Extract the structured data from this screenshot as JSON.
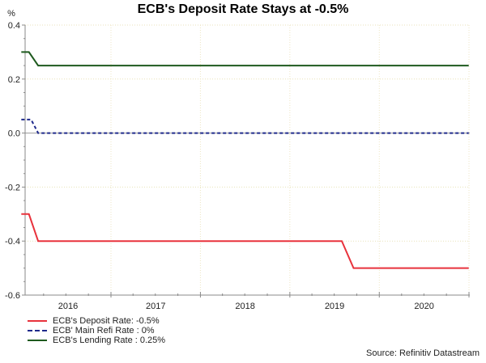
{
  "chart_data": {
    "type": "line",
    "title": "ECB's Deposit Rate Stays at -0.5%",
    "ylabel": "%",
    "xlabel": "",
    "ylim": [
      -0.6,
      0.4
    ],
    "yticks": [
      0.4,
      0.2,
      0.0,
      -0.2,
      -0.4,
      -0.6
    ],
    "ytick_labels": [
      "0.4",
      "0.2",
      "0.0",
      "-0.2",
      "-0.4",
      "-0.6"
    ],
    "xlim": [
      "2015-12-15",
      "2021-01-01"
    ],
    "x_tick_labels": [
      "2016",
      "2017",
      "2018",
      "2019",
      "2020"
    ],
    "grid": true,
    "legend_position": "bottom-left",
    "series": [
      {
        "name": "ECB's Deposit Rate: -0.5%",
        "color": "#e8323c",
        "style": "solid",
        "points": [
          [
            "2016-01-01",
            -0.3
          ],
          [
            "2016-02-01",
            -0.3
          ],
          [
            "2016-03-10",
            -0.4
          ],
          [
            "2019-08-01",
            -0.4
          ],
          [
            "2019-09-18",
            -0.5
          ],
          [
            "2020-12-31",
            -0.5
          ]
        ]
      },
      {
        "name": "ECB' Main Refi Rate : 0%",
        "color": "#1f2a8c",
        "style": "dashed",
        "points": [
          [
            "2016-01-01",
            0.05
          ],
          [
            "2016-02-10",
            0.05
          ],
          [
            "2016-03-10",
            0.0
          ],
          [
            "2020-12-31",
            0.0
          ]
        ]
      },
      {
        "name": "ECB's Lending Rate : 0.25%",
        "color": "#1e5a1e",
        "style": "solid",
        "points": [
          [
            "2016-01-01",
            0.3
          ],
          [
            "2016-02-01",
            0.3
          ],
          [
            "2016-03-10",
            0.25
          ],
          [
            "2020-12-31",
            0.25
          ]
        ]
      }
    ],
    "source": "Source: Refinitiv Datastream"
  },
  "legend": {
    "items": [
      {
        "label": "ECB's Deposit Rate: -0.5%",
        "color": "#e8323c",
        "style": "solid"
      },
      {
        "label": "ECB' Main Refi Rate : 0%",
        "color": "#1f2a8c",
        "style": "dashed"
      },
      {
        "label": "ECB's Lending Rate : 0.25%",
        "color": "#1e5a1e",
        "style": "solid"
      }
    ]
  }
}
